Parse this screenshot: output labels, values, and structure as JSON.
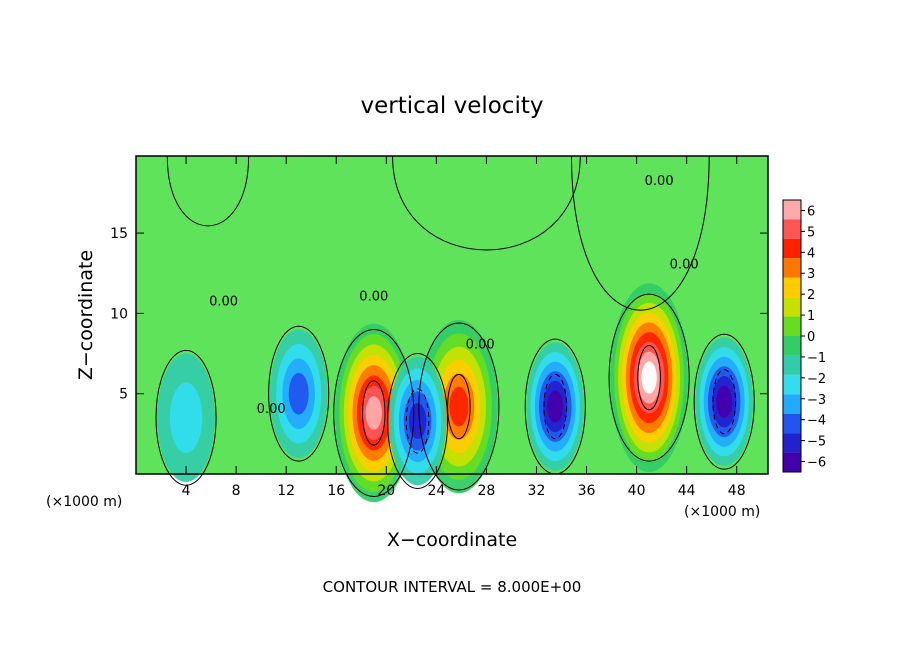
{
  "chart_data": {
    "type": "heatmap",
    "title": "vertical velocity",
    "xlabel": "X−coordinate",
    "ylabel": "Z−coordinate",
    "x_unit_left": "(×1000 m)",
    "x_unit_right": "(×1000 m)",
    "footer": "CONTOUR INTERVAL = 8.000E+00",
    "xlim": [
      0,
      50.5
    ],
    "ylim": [
      0,
      19.8
    ],
    "xticks": [
      4,
      8,
      12,
      16,
      20,
      24,
      28,
      32,
      36,
      40,
      44,
      48
    ],
    "yticks": [
      5,
      10,
      15
    ],
    "colorbar": {
      "ticks": [
        "6",
        "5",
        "4",
        "3",
        "2",
        "1",
        "0",
        "−1",
        "−2",
        "−3",
        "−4",
        "−5",
        "−6"
      ],
      "range": [
        -6,
        6
      ]
    },
    "contour_labels": [
      {
        "text": "0.00",
        "x": 7.0,
        "y": 10.5
      },
      {
        "text": "0.00",
        "x": 10.8,
        "y": 3.8
      },
      {
        "text": "0.00",
        "x": 19.0,
        "y": 10.8
      },
      {
        "text": "0.00",
        "x": 27.5,
        "y": 7.8
      },
      {
        "text": "0.00",
        "x": 43.8,
        "y": 12.8
      },
      {
        "text": "0.00",
        "x": 41.8,
        "y": 18.0
      }
    ],
    "features": [
      {
        "sign": "+",
        "x": 19.0,
        "z": 3.8,
        "peak": 12
      },
      {
        "sign": "+",
        "x": 25.8,
        "z": 4.2,
        "peak": 10
      },
      {
        "sign": "+",
        "x": 41.0,
        "z": 6.0,
        "peak": 16
      },
      {
        "sign": "−",
        "x": 22.5,
        "z": 3.3,
        "peak": -8
      },
      {
        "sign": "−",
        "x": 33.5,
        "z": 4.2,
        "peak": -10
      },
      {
        "sign": "−",
        "x": 47.0,
        "z": 4.5,
        "peak": -9
      },
      {
        "sign": "−",
        "x": 13.0,
        "z": 5.0,
        "peak": -6
      },
      {
        "sign": "−",
        "x": 4.0,
        "z": 3.5,
        "peak": -3.5
      }
    ]
  }
}
